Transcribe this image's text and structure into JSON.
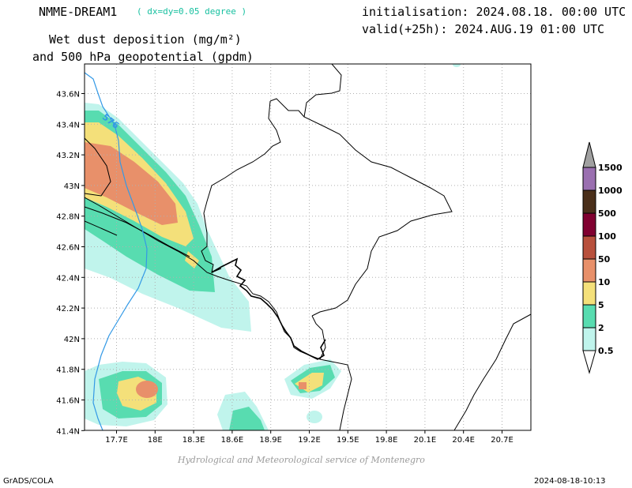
{
  "header": {
    "model": "NMME-DREAM1",
    "resolution": "( dx=dy=0.05 degree )",
    "variable_line1": "Wet dust deposition (mg/m²)",
    "variable_line2": "and 500 hPa geopotential (gpdm)",
    "init": "initialisation: 2024.08.18. 00:00 UTC",
    "valid": "valid(+25h): 2024.AUG.19 01:00 UTC"
  },
  "map": {
    "lon_ticks": [
      "17.7E",
      "18E",
      "18.3E",
      "18.6E",
      "18.9E",
      "19.2E",
      "19.5E",
      "19.8E",
      "20.1E",
      "20.4E",
      "20.7E"
    ],
    "lat_ticks": [
      "43.6N",
      "43.4N",
      "43.2N",
      "43N",
      "42.8N",
      "42.6N",
      "42.4N",
      "42.2N",
      "42N",
      "41.8N",
      "41.6N",
      "41.4N"
    ],
    "contour_label": "576",
    "grid": true,
    "contour_color": "#3399e6"
  },
  "legend": {
    "labels": [
      "1500",
      "1000",
      "500",
      "100",
      "50",
      "10",
      "5",
      "2",
      "0.5"
    ],
    "colors": [
      "#9a6fb0",
      "#4a2f1a",
      "#800030",
      "#b8503c",
      "#e8906a",
      "#f4e07a",
      "#58dcb0",
      "#c0f4ec"
    ],
    "arrow_color": "#a0a0a0"
  },
  "credit": "Hydrological and Meteorological service of Montenegro",
  "footer": {
    "left": "GrADS/COLA",
    "right": "2024-08-18-10:13"
  }
}
